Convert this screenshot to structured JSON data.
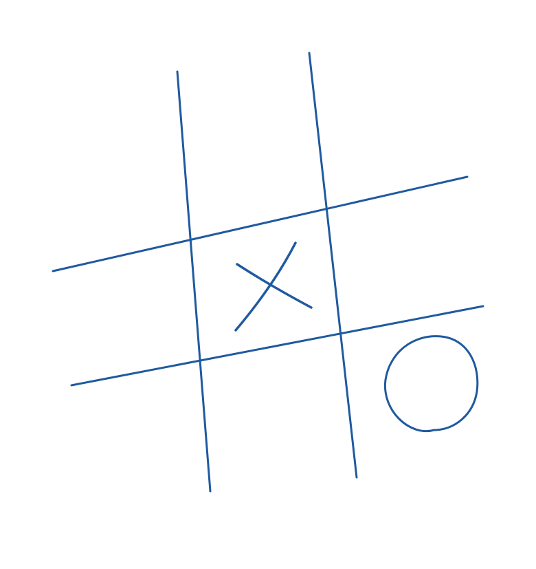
{
  "game": {
    "type": "tic-tac-toe",
    "rows": 3,
    "cols": 3,
    "board": [
      [
        "",
        "",
        ""
      ],
      [
        "",
        "X",
        ""
      ],
      [
        "",
        "",
        "O"
      ]
    ]
  },
  "colors": {
    "paper": "#ffffff",
    "ink": "#1f5aa0"
  }
}
